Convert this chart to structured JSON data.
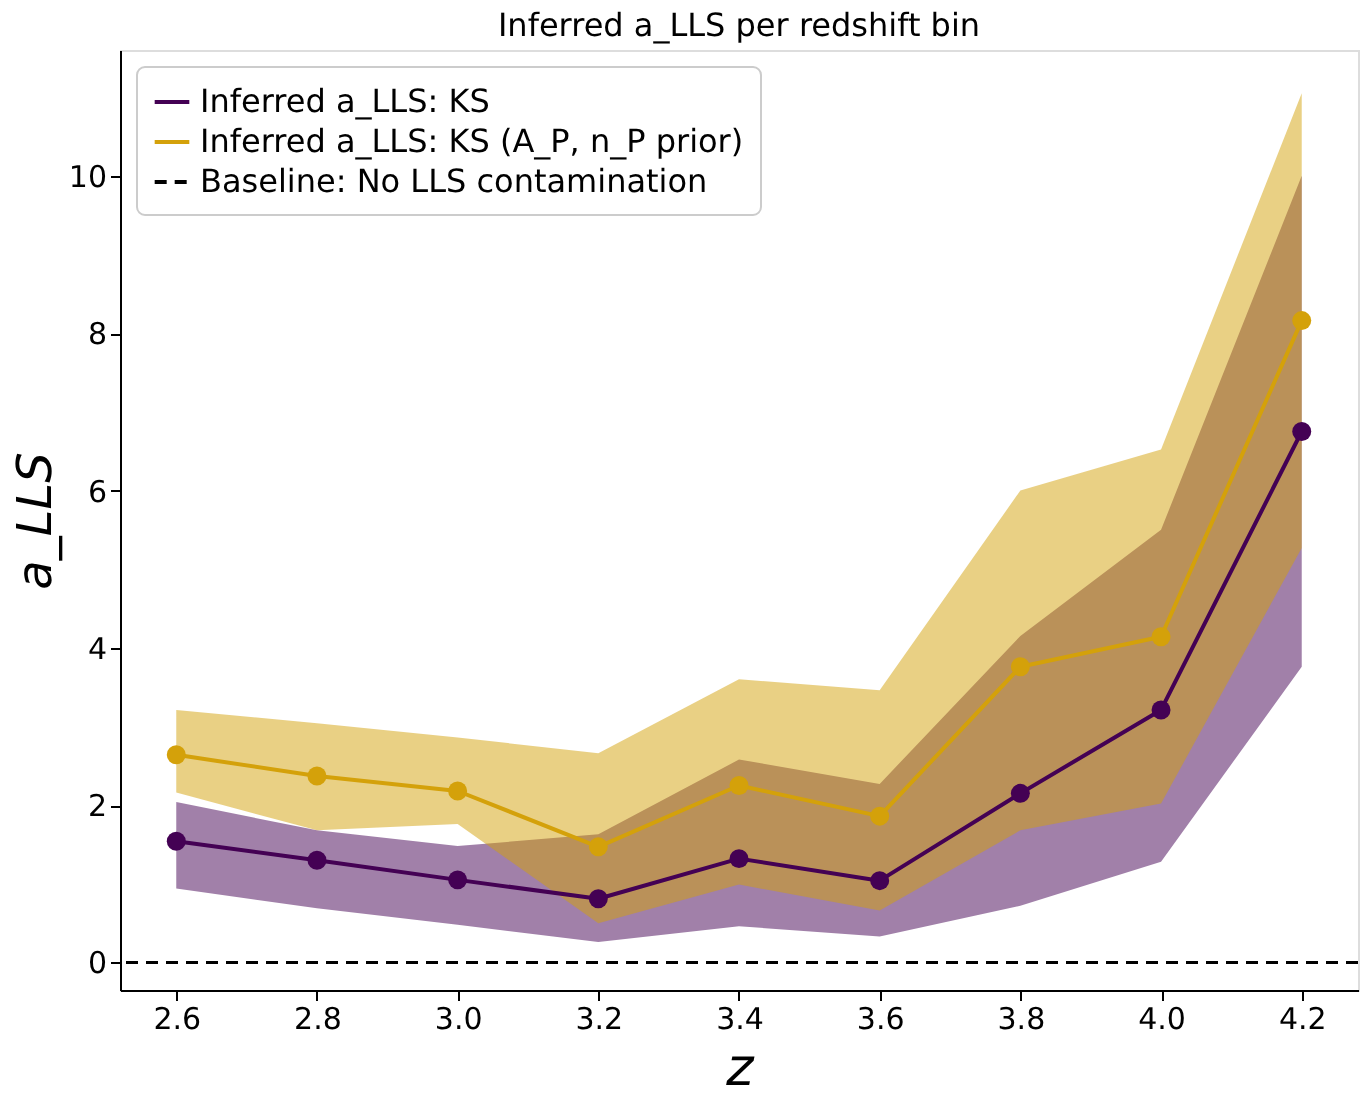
{
  "chart_data": {
    "type": "line",
    "title": "Inferred a_LLS per redshift bin",
    "xlabel": "z",
    "ylabel": "a_LLS",
    "x": [
      2.6,
      2.8,
      3.0,
      3.2,
      3.4,
      3.6,
      3.8,
      4.0,
      4.2
    ],
    "series": [
      {
        "name": "Inferred a_LLS: KS",
        "color": "#440154",
        "values": [
          1.54,
          1.3,
          1.05,
          0.81,
          1.32,
          1.04,
          2.15,
          3.21,
          6.75
        ],
        "lower": [
          0.94,
          0.69,
          0.48,
          0.26,
          0.46,
          0.33,
          0.72,
          1.28,
          3.76
        ],
        "upper": [
          2.04,
          1.68,
          1.48,
          1.63,
          2.58,
          2.27,
          4.15,
          5.5,
          10.0
        ]
      },
      {
        "name": "Inferred a_LLS: KS (A_P, n_P prior)",
        "color": "#d4a10a",
        "values": [
          2.64,
          2.37,
          2.18,
          1.47,
          2.25,
          1.86,
          3.76,
          4.14,
          8.16
        ],
        "lower": [
          2.16,
          1.68,
          1.76,
          0.5,
          0.99,
          0.66,
          1.68,
          2.02,
          5.27
        ],
        "upper": [
          3.21,
          3.04,
          2.86,
          2.66,
          3.6,
          3.46,
          6.0,
          6.52,
          11.05
        ]
      }
    ],
    "ref_lines": [
      {
        "axis": "y",
        "value": 0,
        "label": "Baseline: No LLS contamination",
        "color": "#000000",
        "line_style": "dashed"
      }
    ],
    "marker": "circle",
    "line_style": "solid",
    "grid": false,
    "legend": "top left",
    "xlim": [
      2.52,
      4.28
    ],
    "ylim": [
      -0.35,
      11.6
    ],
    "xticks": [
      2.6,
      2.8,
      {
        "value": 3,
        "label": "3.0"
      },
      3.2,
      3.4,
      3.6,
      3.8,
      {
        "value": 4,
        "label": "4.0"
      },
      4.2
    ],
    "yticks": [
      0,
      2,
      4,
      6,
      8,
      10
    ]
  }
}
